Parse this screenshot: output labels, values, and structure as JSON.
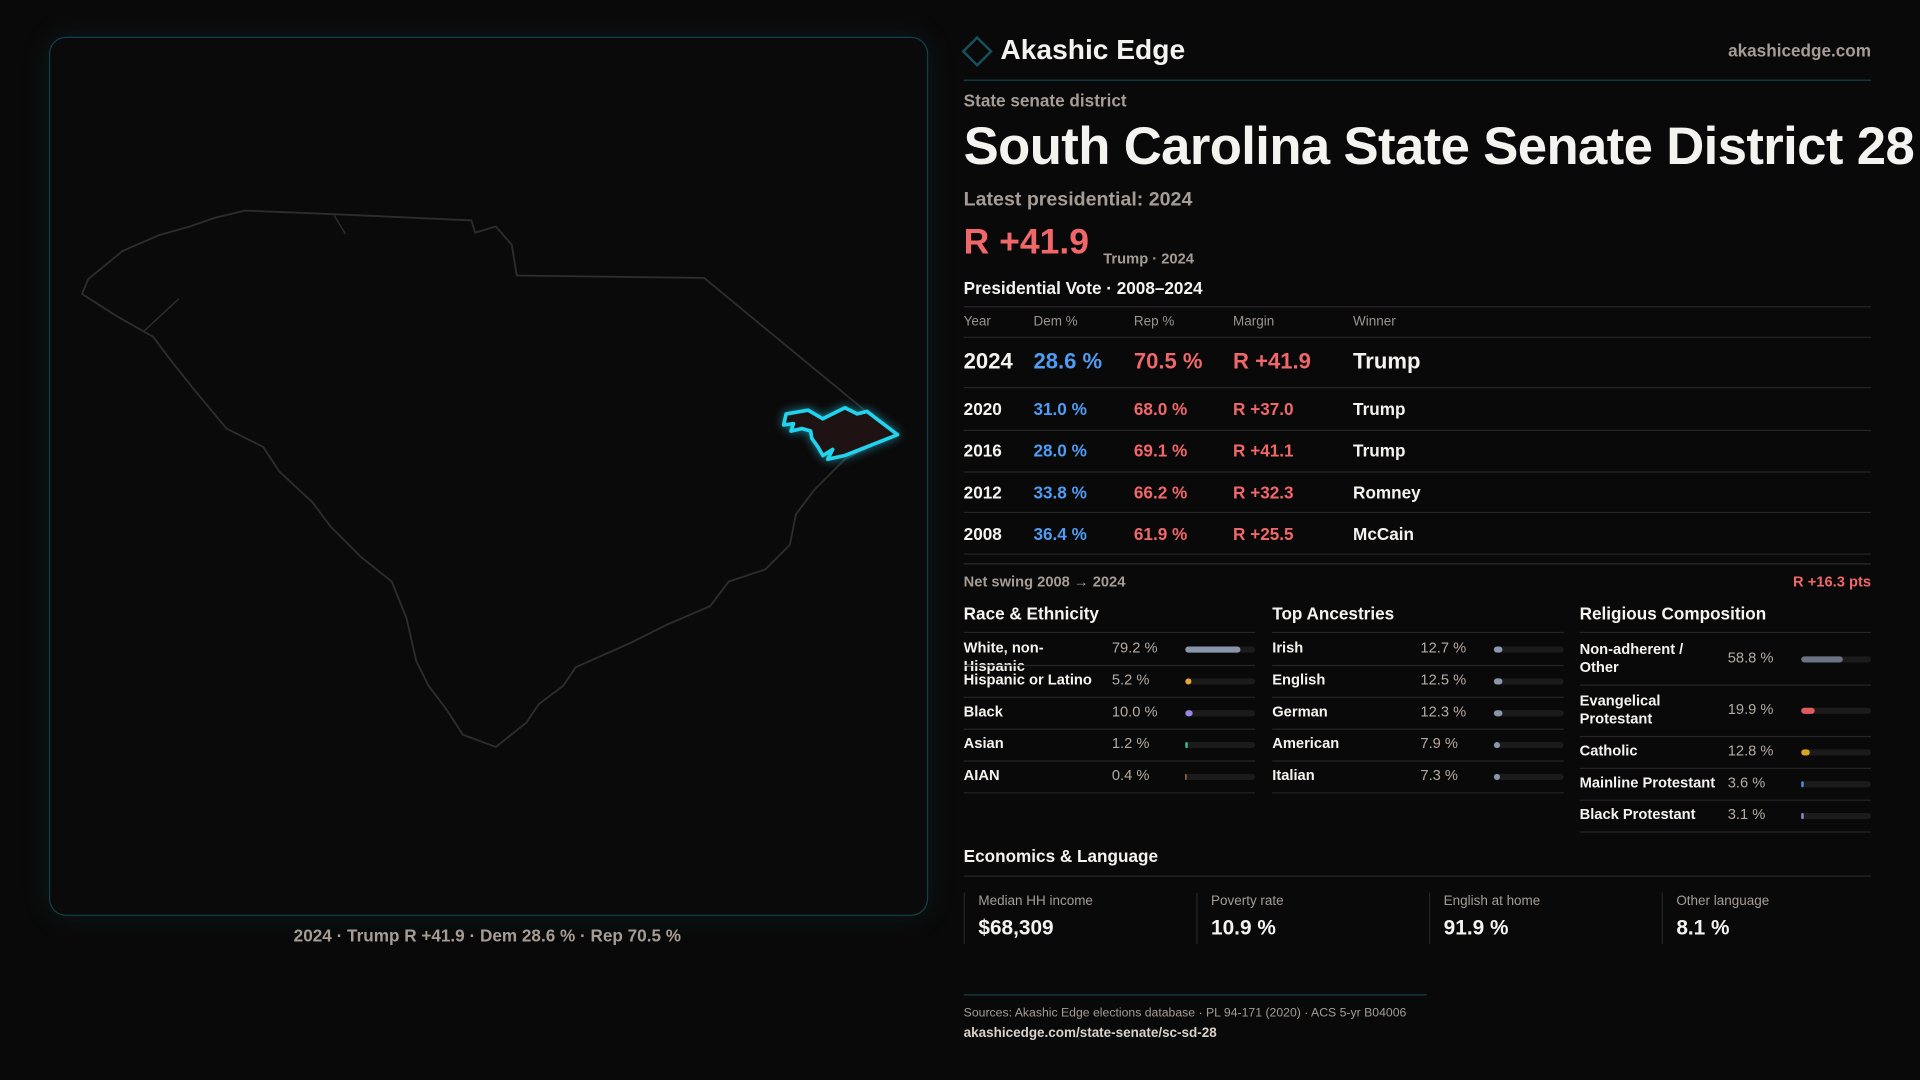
{
  "brand": {
    "name": "Akashic Edge",
    "url": "akashicedge.com"
  },
  "header": {
    "kicker": "State senate district",
    "title": "South Carolina State Senate District 28",
    "latest_label": "Latest presidential: 2024",
    "margin": "R +41.9",
    "margin_sub": "Trump · 2024"
  },
  "map": {
    "caption": "2024 · Trump R +41.9 · Dem 28.6 % · Rep 70.5 %",
    "highlight_color": "#22d3ee"
  },
  "colors": {
    "rep": "#f0676a",
    "dem": "#4f9cf5",
    "accent": "#22d3ee"
  },
  "pres": {
    "title": "Presidential Vote · 2008–2024",
    "columns": [
      "Year",
      "Dem %",
      "Rep %",
      "Margin",
      "Winner"
    ],
    "rows": [
      {
        "year": "2024",
        "dem": "28.6 %",
        "rep": "70.5 %",
        "margin": "R +41.9",
        "winner": "Trump"
      },
      {
        "year": "2020",
        "dem": "31.0 %",
        "rep": "68.0 %",
        "margin": "R +37.0",
        "winner": "Trump"
      },
      {
        "year": "2016",
        "dem": "28.0 %",
        "rep": "69.1 %",
        "margin": "R +41.1",
        "winner": "Trump"
      },
      {
        "year": "2012",
        "dem": "33.8 %",
        "rep": "66.2 %",
        "margin": "R +32.3",
        "winner": "Romney"
      },
      {
        "year": "2008",
        "dem": "36.4 %",
        "rep": "61.9 %",
        "margin": "R +25.5",
        "winner": "McCain"
      }
    ],
    "swing_label": "Net swing 2008 → 2024",
    "swing_value": "R +16.3 pts"
  },
  "demo": [
    {
      "title": "Race & Ethnicity",
      "items": [
        {
          "label": "White, non-Hispanic",
          "value": "79.2 %",
          "pct": 79.2,
          "color": "#8a96aa"
        },
        {
          "label": "Hispanic or Latino",
          "value": "5.2 %",
          "pct": 5.2,
          "color": "#e0a63a"
        },
        {
          "label": "Black",
          "value": "10.0 %",
          "pct": 10.0,
          "color": "#9c86e0"
        },
        {
          "label": "Asian",
          "value": "1.2 %",
          "pct": 1.2,
          "color": "#34c08a"
        },
        {
          "label": "AIAN",
          "value": "0.4 %",
          "pct": 0.4,
          "color": "#c77d4a"
        }
      ]
    },
    {
      "title": "Top Ancestries",
      "items": [
        {
          "label": "Irish",
          "value": "12.7 %",
          "pct": 12.7,
          "color": "#8a96aa"
        },
        {
          "label": "English",
          "value": "12.5 %",
          "pct": 12.5,
          "color": "#8a96aa"
        },
        {
          "label": "German",
          "value": "12.3 %",
          "pct": 12.3,
          "color": "#8a96aa"
        },
        {
          "label": "American",
          "value": "7.9 %",
          "pct": 7.9,
          "color": "#8a96aa"
        },
        {
          "label": "Italian",
          "value": "7.3 %",
          "pct": 7.3,
          "color": "#8a96aa"
        }
      ]
    },
    {
      "title": "Religious Composition",
      "items": [
        {
          "label": "Non-adherent / Other",
          "value": "58.8 %",
          "pct": 58.8,
          "color": "#6c7282"
        },
        {
          "label": "Evangelical Protestant",
          "value": "19.9 %",
          "pct": 19.9,
          "color": "#e05a5e"
        },
        {
          "label": "Catholic",
          "value": "12.8 %",
          "pct": 12.8,
          "color": "#d9a520"
        },
        {
          "label": "Mainline Protestant",
          "value": "3.6 %",
          "pct": 3.6,
          "color": "#4f8fe0"
        },
        {
          "label": "Black Protestant",
          "value": "3.1 %",
          "pct": 3.1,
          "color": "#9c86e0"
        }
      ]
    }
  ],
  "econ": {
    "title": "Economics & Language",
    "items": [
      {
        "label": "Median HH income",
        "value": "$68,309"
      },
      {
        "label": "Poverty rate",
        "value": "10.9 %"
      },
      {
        "label": "English at home",
        "value": "91.9 %"
      },
      {
        "label": "Other language",
        "value": "8.1 %"
      }
    ]
  },
  "footer": {
    "sources": "Sources: Akashic Edge elections database · PL 94-171 (2020) · ACS 5-yr B04006",
    "link": "akashicedge.com/state-senate/sc-sd-28"
  }
}
